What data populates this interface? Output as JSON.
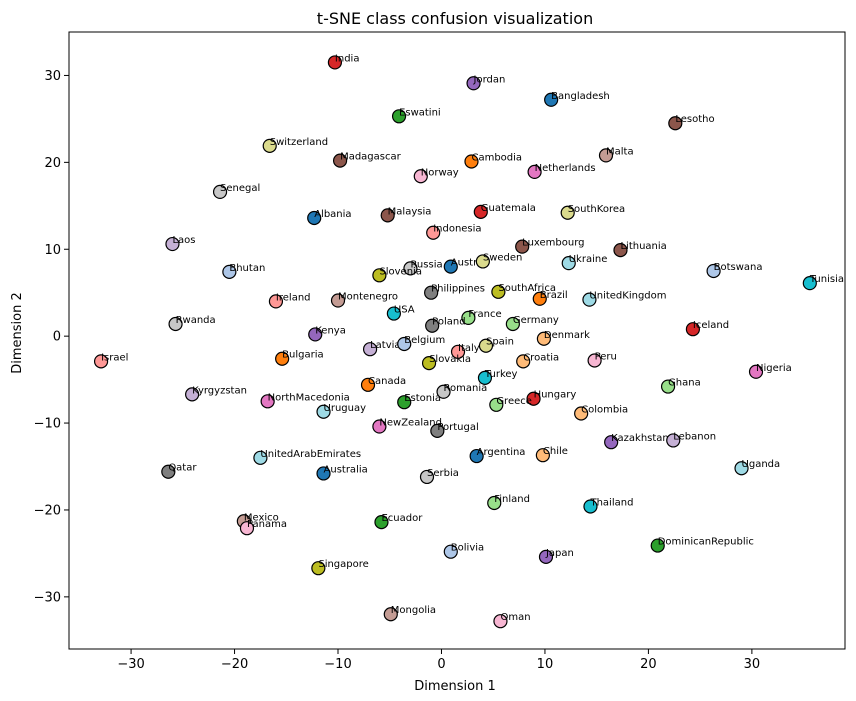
{
  "chart_data": {
    "type": "scatter",
    "title": "t-SNE class confusion visualization",
    "xlabel": "Dimension 1",
    "ylabel": "Dimension 2",
    "xlim": [
      -36,
      39
    ],
    "ylim": [
      -36,
      35
    ],
    "xticks": [
      -30,
      -20,
      -10,
      0,
      10,
      20,
      30
    ],
    "yticks": [
      -30,
      -20,
      -10,
      0,
      10,
      20,
      30
    ],
    "grid": false,
    "points": [
      {
        "label": "India",
        "x": -10.3,
        "y": 31.5,
        "color": "#d62728"
      },
      {
        "label": "Jordan",
        "x": 3.1,
        "y": 29.1,
        "color": "#9467bd"
      },
      {
        "label": "Bangladesh",
        "x": 10.6,
        "y": 27.2,
        "color": "#1f77b4"
      },
      {
        "label": "Lesotho",
        "x": 22.6,
        "y": 24.5,
        "color": "#8c564b"
      },
      {
        "label": "Eswatini",
        "x": -4.1,
        "y": 25.3,
        "color": "#2ca02c"
      },
      {
        "label": "Switzerland",
        "x": -16.6,
        "y": 21.9,
        "color": "#dbdb8d"
      },
      {
        "label": "Madagascar",
        "x": -9.8,
        "y": 20.2,
        "color": "#8c564b"
      },
      {
        "label": "Cambodia",
        "x": 2.9,
        "y": 20.1,
        "color": "#ff7f0e"
      },
      {
        "label": "Malta",
        "x": 15.9,
        "y": 20.8,
        "color": "#c49c94"
      },
      {
        "label": "Norway",
        "x": -2.0,
        "y": 18.4,
        "color": "#f7b6d2"
      },
      {
        "label": "Netherlands",
        "x": 9.0,
        "y": 18.9,
        "color": "#e377c2"
      },
      {
        "label": "Senegal",
        "x": -21.4,
        "y": 16.6,
        "color": "#c7c7c7"
      },
      {
        "label": "Albania",
        "x": -12.3,
        "y": 13.6,
        "color": "#1f77b4"
      },
      {
        "label": "Malaysia",
        "x": -5.2,
        "y": 13.9,
        "color": "#8c564b"
      },
      {
        "label": "Guatemala",
        "x": 3.8,
        "y": 14.3,
        "color": "#d62728"
      },
      {
        "label": "SouthKorea",
        "x": 12.2,
        "y": 14.2,
        "color": "#dbdb8d"
      },
      {
        "label": "Indonesia",
        "x": -0.8,
        "y": 11.9,
        "color": "#ff9896"
      },
      {
        "label": "Laos",
        "x": -26.0,
        "y": 10.6,
        "color": "#c5b0d5"
      },
      {
        "label": "Luxembourg",
        "x": 7.8,
        "y": 10.3,
        "color": "#8c564b"
      },
      {
        "label": "Lithuania",
        "x": 17.3,
        "y": 9.9,
        "color": "#8c564b"
      },
      {
        "label": "Bhutan",
        "x": -20.5,
        "y": 7.4,
        "color": "#aec7e8"
      },
      {
        "label": "Russia",
        "x": -3.0,
        "y": 7.8,
        "color": "#c7c7c7"
      },
      {
        "label": "Slovenia",
        "x": -6.0,
        "y": 7.0,
        "color": "#bcbd22"
      },
      {
        "label": "Austria",
        "x": 0.9,
        "y": 8.0,
        "color": "#1f77b4"
      },
      {
        "label": "Sweden",
        "x": 4.0,
        "y": 8.6,
        "color": "#dbdb8d"
      },
      {
        "label": "Ukraine",
        "x": 12.3,
        "y": 8.4,
        "color": "#9edae5"
      },
      {
        "label": "Botswana",
        "x": 26.3,
        "y": 7.5,
        "color": "#aec7e8"
      },
      {
        "label": "Tunisia",
        "x": 35.6,
        "y": 6.1,
        "color": "#17becf"
      },
      {
        "label": "Ireland",
        "x": -16.0,
        "y": 4.0,
        "color": "#ff9896"
      },
      {
        "label": "Montenegro",
        "x": -10.0,
        "y": 4.1,
        "color": "#c49c94"
      },
      {
        "label": "Philippines",
        "x": -1.0,
        "y": 5.0,
        "color": "#7f7f7f"
      },
      {
        "label": "SouthAfrica",
        "x": 5.5,
        "y": 5.1,
        "color": "#bcbd22"
      },
      {
        "label": "Brazil",
        "x": 9.5,
        "y": 4.3,
        "color": "#ff7f0e"
      },
      {
        "label": "UnitedKingdom",
        "x": 14.3,
        "y": 4.2,
        "color": "#9edae5"
      },
      {
        "label": "Rwanda",
        "x": -25.7,
        "y": 1.4,
        "color": "#c7c7c7"
      },
      {
        "label": "USA",
        "x": -4.6,
        "y": 2.6,
        "color": "#17becf"
      },
      {
        "label": "France",
        "x": 2.6,
        "y": 2.1,
        "color": "#98df8a"
      },
      {
        "label": "Germany",
        "x": 6.9,
        "y": 1.4,
        "color": "#98df8a"
      },
      {
        "label": "Poland",
        "x": -0.9,
        "y": 1.2,
        "color": "#7f7f7f"
      },
      {
        "label": "Iceland",
        "x": 24.3,
        "y": 0.8,
        "color": "#d62728"
      },
      {
        "label": "Kenya",
        "x": -12.2,
        "y": 0.2,
        "color": "#9467bd"
      },
      {
        "label": "Israel",
        "x": -32.9,
        "y": -2.9,
        "color": "#ff9896"
      },
      {
        "label": "Bulgaria",
        "x": -15.4,
        "y": -2.6,
        "color": "#ff7f0e"
      },
      {
        "label": "Latvia",
        "x": -6.9,
        "y": -1.5,
        "color": "#c5b0d5"
      },
      {
        "label": "Belgium",
        "x": -3.6,
        "y": -0.9,
        "color": "#aec7e8"
      },
      {
        "label": "Italy",
        "x": 1.6,
        "y": -1.8,
        "color": "#ff9896"
      },
      {
        "label": "Spain",
        "x": 4.3,
        "y": -1.1,
        "color": "#dbdb8d"
      },
      {
        "label": "Denmark",
        "x": 9.9,
        "y": -0.3,
        "color": "#ffbb78"
      },
      {
        "label": "Slovakia",
        "x": -1.2,
        "y": -3.1,
        "color": "#bcbd22"
      },
      {
        "label": "Croatia",
        "x": 7.9,
        "y": -2.9,
        "color": "#ffbb78"
      },
      {
        "label": "Peru",
        "x": 14.8,
        "y": -2.8,
        "color": "#f7b6d2"
      },
      {
        "label": "Nigeria",
        "x": 30.4,
        "y": -4.1,
        "color": "#e377c2"
      },
      {
        "label": "Turkey",
        "x": 4.2,
        "y": -4.8,
        "color": "#17becf"
      },
      {
        "label": "Kyrgyzstan",
        "x": -24.1,
        "y": -6.7,
        "color": "#c5b0d5"
      },
      {
        "label": "Canada",
        "x": -7.1,
        "y": -5.6,
        "color": "#ff7f0e"
      },
      {
        "label": "Romania",
        "x": 0.2,
        "y": -6.4,
        "color": "#c7c7c7"
      },
      {
        "label": "Ghana",
        "x": 21.9,
        "y": -5.8,
        "color": "#98df8a"
      },
      {
        "label": "Hungary",
        "x": 8.9,
        "y": -7.2,
        "color": "#d62728"
      },
      {
        "label": "NorthMacedonia",
        "x": -16.8,
        "y": -7.5,
        "color": "#e377c2"
      },
      {
        "label": "Estonia",
        "x": -3.6,
        "y": -7.6,
        "color": "#2ca02c"
      },
      {
        "label": "Greece",
        "x": 5.3,
        "y": -7.9,
        "color": "#98df8a"
      },
      {
        "label": "Uruguay",
        "x": -11.4,
        "y": -8.7,
        "color": "#9edae5"
      },
      {
        "label": "Colombia",
        "x": 13.5,
        "y": -8.9,
        "color": "#ffbb78"
      },
      {
        "label": "NewZealand",
        "x": -6.0,
        "y": -10.4,
        "color": "#e377c2"
      },
      {
        "label": "Portugal",
        "x": -0.4,
        "y": -10.9,
        "color": "#7f7f7f"
      },
      {
        "label": "Kazakhstan",
        "x": 16.4,
        "y": -12.2,
        "color": "#9467bd"
      },
      {
        "label": "Lebanon",
        "x": 22.4,
        "y": -12.0,
        "color": "#c5b0d5"
      },
      {
        "label": "Argentina",
        "x": 3.4,
        "y": -13.8,
        "color": "#1f77b4"
      },
      {
        "label": "Chile",
        "x": 9.8,
        "y": -13.7,
        "color": "#ffbb78"
      },
      {
        "label": "UnitedArabEmirates",
        "x": -17.5,
        "y": -14.0,
        "color": "#9edae5"
      },
      {
        "label": "Qatar",
        "x": -26.4,
        "y": -15.6,
        "color": "#7f7f7f"
      },
      {
        "label": "Australia",
        "x": -11.4,
        "y": -15.8,
        "color": "#1f77b4"
      },
      {
        "label": "Serbia",
        "x": -1.4,
        "y": -16.2,
        "color": "#c7c7c7"
      },
      {
        "label": "Uganda",
        "x": 29.0,
        "y": -15.2,
        "color": "#9edae5"
      },
      {
        "label": "Finland",
        "x": 5.1,
        "y": -19.2,
        "color": "#98df8a"
      },
      {
        "label": "Thailand",
        "x": 14.4,
        "y": -19.6,
        "color": "#17becf"
      },
      {
        "label": "Mexico",
        "x": -19.1,
        "y": -21.3,
        "color": "#c49c94"
      },
      {
        "label": "Panama",
        "x": -18.8,
        "y": -22.1,
        "color": "#f7b6d2"
      },
      {
        "label": "Ecuador",
        "x": -5.8,
        "y": -21.4,
        "color": "#2ca02c"
      },
      {
        "label": "DominicanRepublic",
        "x": 20.9,
        "y": -24.1,
        "color": "#2ca02c"
      },
      {
        "label": "Bolivia",
        "x": 0.9,
        "y": -24.8,
        "color": "#aec7e8"
      },
      {
        "label": "Japan",
        "x": 10.1,
        "y": -25.4,
        "color": "#9467bd"
      },
      {
        "label": "Singapore",
        "x": -11.9,
        "y": -26.7,
        "color": "#bcbd22"
      },
      {
        "label": "Mongolia",
        "x": -4.9,
        "y": -32.0,
        "color": "#c49c94"
      },
      {
        "label": "Oman",
        "x": 5.7,
        "y": -32.8,
        "color": "#f7b6d2"
      }
    ]
  }
}
